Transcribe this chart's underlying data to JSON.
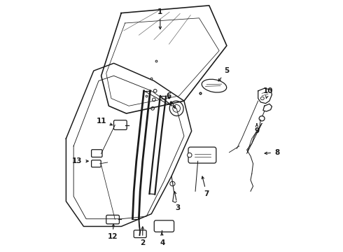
{
  "bg_color": "#ffffff",
  "line_color": "#1a1a1a",
  "lw": 0.9,
  "figsize": [
    4.9,
    3.6
  ],
  "dpi": 100,
  "label_fs": 7.5,
  "labels": {
    "1": [
      0.455,
      0.955,
      0.455,
      0.875
    ],
    "2": [
      0.385,
      0.035,
      0.385,
      0.11
    ],
    "3": [
      0.525,
      0.175,
      0.51,
      0.25
    ],
    "4": [
      0.465,
      0.035,
      0.46,
      0.085
    ],
    "5": [
      0.72,
      0.72,
      0.68,
      0.67
    ],
    "6": [
      0.49,
      0.62,
      0.52,
      0.56
    ],
    "7": [
      0.64,
      0.23,
      0.62,
      0.31
    ],
    "8": [
      0.92,
      0.395,
      0.86,
      0.39
    ],
    "9": [
      0.84,
      0.48,
      0.84,
      0.51
    ],
    "10": [
      0.885,
      0.64,
      0.875,
      0.6
    ],
    "11": [
      0.22,
      0.52,
      0.275,
      0.5
    ],
    "12": [
      0.265,
      0.06,
      0.27,
      0.12
    ],
    "13": [
      0.125,
      0.36,
      0.18,
      0.36
    ]
  }
}
